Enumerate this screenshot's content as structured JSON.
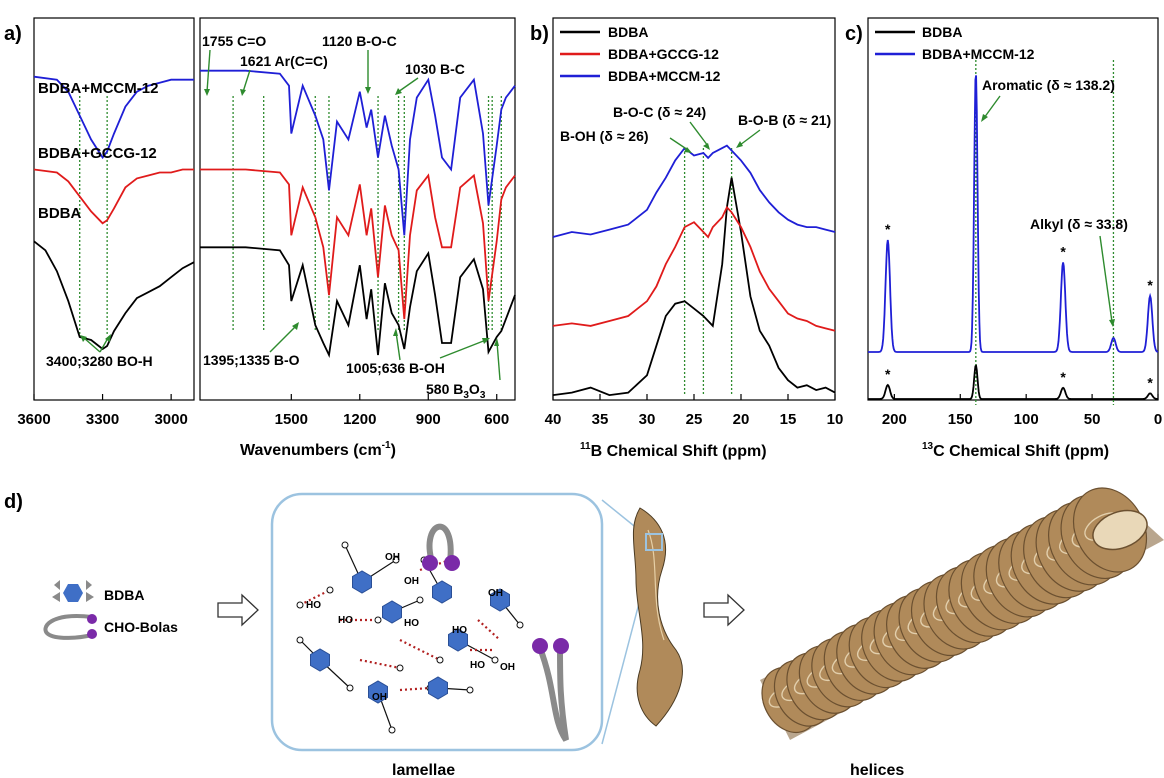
{
  "panel_labels": {
    "a": "a)",
    "b": "b)",
    "c": "c)",
    "d": "d)"
  },
  "colors": {
    "BDBA": "#000000",
    "BDBA+GCCG-12": "#e01b1b",
    "BDBA+MCCM-12": "#1f1fd6",
    "guide": "#2e8b2e",
    "ring": "#3f6fc6",
    "bolas": "#7a2aa8",
    "hbond": "#b22222",
    "helix": "#b08a5a"
  },
  "chart_data": [
    {
      "panel": "a",
      "type": "line",
      "xlabel": "Wavenumbers (cm",
      "xlabel_sup": "-1",
      "xlabel_end": ")",
      "xlim_left": [
        3600,
        2900
      ],
      "xlim_right": [
        1900,
        520
      ],
      "xticks_left": [
        "3600",
        "3300",
        "3000"
      ],
      "xticks_right": [
        "1500",
        "1200",
        "900",
        "600"
      ],
      "series_labels": [
        "BDBA+MCCM-12",
        "BDBA+GCCG-12",
        "BDBA"
      ],
      "series": [
        {
          "name": "BDBA+MCCM-12",
          "x": [
            3600,
            3500,
            3450,
            3400,
            3350,
            3300,
            3280,
            3250,
            3200,
            3150,
            3100,
            3050,
            3000,
            2950,
            2900
          ],
          "y": [
            0.93,
            0.92,
            0.88,
            0.8,
            0.72,
            0.66,
            0.68,
            0.74,
            0.83,
            0.88,
            0.9,
            0.91,
            0.92,
            0.92,
            0.92
          ]
        },
        {
          "name": "BDBA+GCCG-12",
          "x": [
            3600,
            3500,
            3450,
            3400,
            3350,
            3300,
            3280,
            3250,
            3200,
            3150,
            3100,
            3050,
            3000,
            2950,
            2900
          ],
          "y": [
            0.62,
            0.61,
            0.58,
            0.53,
            0.48,
            0.44,
            0.45,
            0.49,
            0.56,
            0.59,
            0.6,
            0.61,
            0.61,
            0.62,
            0.62
          ]
        },
        {
          "name": "BDBA",
          "x": [
            3600,
            3550,
            3500,
            3450,
            3400,
            3350,
            3300,
            3280,
            3250,
            3200,
            3150,
            3100,
            3050,
            3000,
            2950,
            2900
          ],
          "y": [
            0.38,
            0.35,
            0.28,
            0.18,
            0.06,
            0.05,
            0.02,
            0.03,
            0.08,
            0.14,
            0.19,
            0.21,
            0.23,
            0.26,
            0.29,
            0.31
          ]
        },
        {
          "name": "BDBA+MCCM-12 (fingerprint)",
          "x": [
            1900,
            1700,
            1550,
            1510,
            1500,
            1450,
            1395,
            1360,
            1335,
            1300,
            1250,
            1200,
            1170,
            1150,
            1120,
            1090,
            1060,
            1030,
            1005,
            980,
            950,
            900,
            870,
            840,
            800,
            760,
            700,
            660,
            636,
            600,
            580,
            560,
            520
          ],
          "y": [
            0.95,
            0.95,
            0.94,
            0.9,
            0.74,
            0.9,
            0.8,
            0.72,
            0.55,
            0.78,
            0.72,
            0.88,
            0.76,
            0.82,
            0.66,
            0.8,
            0.7,
            0.62,
            0.4,
            0.72,
            0.86,
            0.92,
            0.8,
            0.66,
            0.62,
            0.86,
            0.92,
            0.74,
            0.5,
            0.7,
            0.82,
            0.86,
            0.9
          ]
        },
        {
          "name": "BDBA+GCCG-12 (fingerprint)",
          "x": [
            1900,
            1700,
            1550,
            1510,
            1500,
            1450,
            1395,
            1360,
            1335,
            1300,
            1250,
            1200,
            1170,
            1150,
            1120,
            1090,
            1060,
            1030,
            1005,
            980,
            950,
            900,
            870,
            840,
            800,
            760,
            700,
            660,
            636,
            600,
            580,
            560,
            520
          ],
          "y": [
            0.62,
            0.62,
            0.61,
            0.57,
            0.4,
            0.56,
            0.46,
            0.36,
            0.2,
            0.46,
            0.4,
            0.57,
            0.4,
            0.49,
            0.26,
            0.5,
            0.4,
            0.35,
            0.12,
            0.4,
            0.55,
            0.6,
            0.46,
            0.36,
            0.36,
            0.56,
            0.6,
            0.44,
            0.18,
            0.38,
            0.52,
            0.56,
            0.6
          ]
        },
        {
          "name": "BDBA (fingerprint)",
          "x": [
            1900,
            1700,
            1550,
            1510,
            1500,
            1450,
            1395,
            1360,
            1335,
            1300,
            1250,
            1200,
            1170,
            1150,
            1120,
            1090,
            1060,
            1030,
            1005,
            980,
            950,
            900,
            870,
            840,
            800,
            760,
            700,
            660,
            636,
            600,
            580,
            560,
            520
          ],
          "y": [
            0.36,
            0.36,
            0.35,
            0.3,
            0.18,
            0.3,
            0.1,
            0.04,
            0.0,
            0.18,
            0.1,
            0.3,
            0.12,
            0.22,
            0.0,
            0.24,
            0.14,
            0.1,
            0.02,
            0.16,
            0.28,
            0.34,
            0.2,
            0.04,
            0.04,
            0.26,
            0.32,
            0.22,
            0.01,
            0.06,
            0.08,
            0.12,
            0.2
          ]
        }
      ],
      "annotations": [
        {
          "text": "1755 C=O"
        },
        {
          "text": "1621 Ar(C=C)"
        },
        {
          "text": "1120 B-O-C"
        },
        {
          "text": "1030 B-C"
        },
        {
          "text": "3400;3280 BO-H"
        },
        {
          "text": "1395;1335 B-O"
        },
        {
          "text": "1005;636 B-OH"
        },
        {
          "text": "580 B",
          "sub": "3",
          "mid": "O",
          "sub2": "3"
        }
      ],
      "guide_x_left": [
        3400,
        3280
      ],
      "guide_x_right": [
        1755,
        1621,
        1395,
        1335,
        1120,
        1030,
        1005,
        636,
        620,
        580
      ]
    },
    {
      "panel": "b",
      "type": "line",
      "xlabel_sup": "11",
      "xlabel": "B Chemical Shift (ppm)",
      "xlim": [
        40,
        10
      ],
      "xticks": [
        "40",
        "35",
        "30",
        "25",
        "20",
        "15",
        "10"
      ],
      "legend": [
        "BDBA",
        "BDBA+GCCG-12",
        "BDBA+MCCM-12"
      ],
      "series": [
        {
          "name": "BDBA",
          "x": [
            40,
            38,
            36,
            34,
            32,
            30,
            29,
            28,
            27,
            26,
            25,
            24,
            23,
            22,
            21.5,
            21,
            20,
            19,
            18,
            17,
            16,
            15,
            14,
            13,
            12,
            11,
            10
          ],
          "y": [
            0.02,
            0.03,
            0.05,
            0.02,
            0.03,
            0.1,
            0.22,
            0.34,
            0.39,
            0.4,
            0.37,
            0.34,
            0.3,
            0.55,
            0.78,
            0.9,
            0.68,
            0.42,
            0.28,
            0.22,
            0.13,
            0.08,
            0.05,
            0.06,
            0.04,
            0.05,
            0.03
          ]
        },
        {
          "name": "BDBA+GCCG-12",
          "x": [
            40,
            38,
            36,
            34,
            32,
            30,
            29,
            28,
            27,
            26,
            25,
            24,
            23.5,
            23,
            22,
            21.5,
            21,
            20,
            19,
            18,
            17,
            16,
            15,
            14,
            13,
            12,
            11,
            10
          ],
          "y": [
            0.3,
            0.31,
            0.3,
            0.32,
            0.34,
            0.4,
            0.46,
            0.55,
            0.62,
            0.7,
            0.72,
            0.68,
            0.66,
            0.7,
            0.74,
            0.78,
            0.76,
            0.7,
            0.62,
            0.52,
            0.45,
            0.4,
            0.35,
            0.33,
            0.32,
            0.3,
            0.29,
            0.28
          ]
        },
        {
          "name": "BDBA+MCCM-12",
          "x": [
            40,
            38,
            36,
            34,
            32,
            30,
            29,
            28,
            27,
            26,
            25,
            24,
            23.5,
            23,
            22,
            21.5,
            21,
            20,
            19,
            18,
            17,
            16,
            15,
            14,
            13,
            12,
            11,
            10
          ],
          "y": [
            0.66,
            0.68,
            0.67,
            0.69,
            0.71,
            0.77,
            0.84,
            0.9,
            0.97,
            1.02,
            0.99,
            1.0,
            0.98,
            1.0,
            1.02,
            1.03,
            1.01,
            0.97,
            0.92,
            0.85,
            0.8,
            0.76,
            0.73,
            0.71,
            0.7,
            0.7,
            0.69,
            0.68
          ]
        }
      ],
      "annotations": [
        {
          "text": "B-O-C (δ ≈ 24)"
        },
        {
          "text": "B-OH (δ ≈ 26)"
        },
        {
          "text": "B-O-B (δ ≈ 21)"
        }
      ],
      "guide_x": [
        26,
        24,
        21
      ]
    },
    {
      "panel": "c",
      "type": "line",
      "xlabel_sup": "13",
      "xlabel": "C Chemical Shift (ppm)",
      "xlim": [
        220,
        0
      ],
      "xticks": [
        "200",
        "150",
        "100",
        "50",
        "0"
      ],
      "legend": [
        "BDBA",
        "BDBA+MCCM-12"
      ],
      "series": [
        {
          "name": "BDBA+MCCM-12",
          "peaks": [
            {
              "x": 205,
              "h": 0.4
            },
            {
              "x": 138.2,
              "h": 1.0
            },
            {
              "x": 72,
              "h": 0.32
            },
            {
              "x": 33.8,
              "h": 0.05
            },
            {
              "x": 6,
              "h": 0.2
            }
          ]
        },
        {
          "name": "BDBA",
          "peaks": [
            {
              "x": 205,
              "h": 0.05
            },
            {
              "x": 138.2,
              "h": 0.12
            },
            {
              "x": 72,
              "h": 0.04
            },
            {
              "x": 6,
              "h": 0.02
            }
          ]
        }
      ],
      "annotations": [
        {
          "text": "Aromatic (δ ≈ 138.2)"
        },
        {
          "text": "Alkyl (δ ≈ 33.8)"
        },
        {
          "text": "*"
        }
      ],
      "guide_x": [
        138.2,
        33.8
      ]
    }
  ],
  "schematic": {
    "legend_items": [
      "BDBA",
      "CHO-Bolas"
    ],
    "captions": [
      "lamellae",
      "helices"
    ],
    "molecule_labels": [
      "HO",
      "OH",
      "O",
      "B"
    ]
  }
}
